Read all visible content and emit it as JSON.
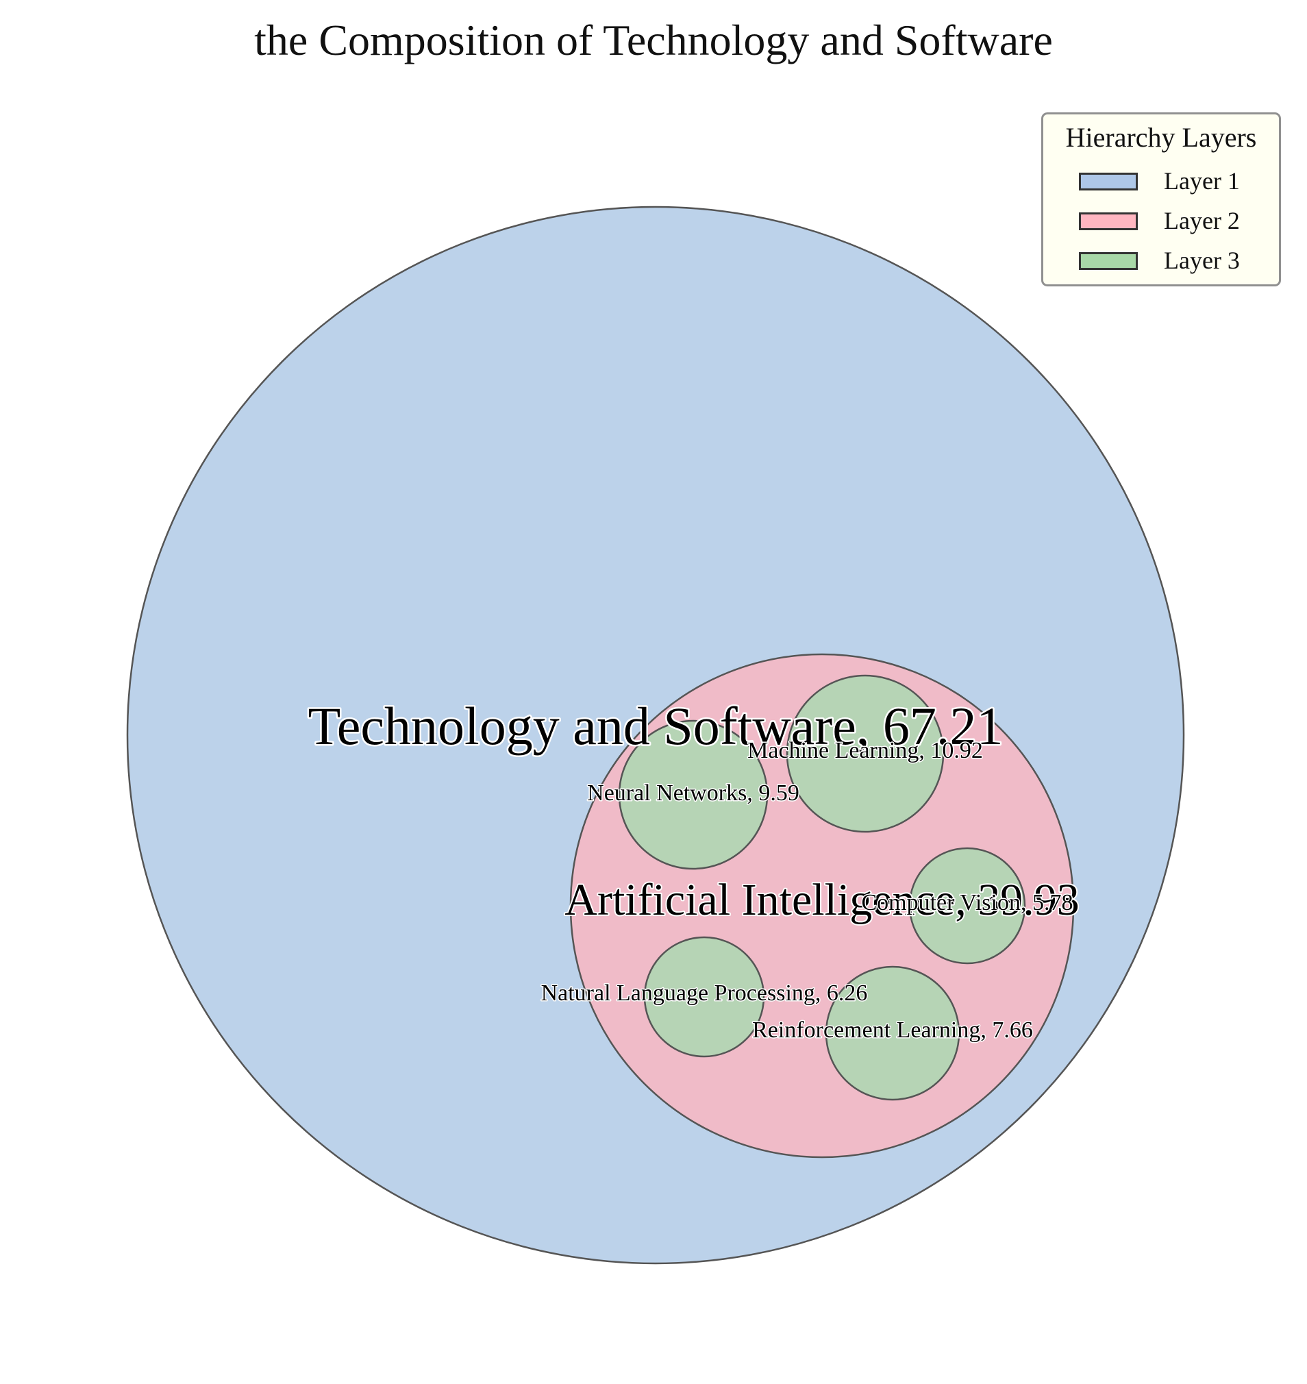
{
  "chart_data": {
    "type": "circle_packing",
    "title": "the Composition of Technology and Software",
    "nodes": [
      {
        "name": "Technology and Software",
        "value": 67.21,
        "label": "Technology and Software, 67.21",
        "layer": 1,
        "parent": null
      },
      {
        "name": "Artificial Intelligence",
        "value": 39.93,
        "label": "Artificial Intelligence, 39.93",
        "layer": 2,
        "parent": "Technology and Software"
      },
      {
        "name": "Machine Learning",
        "value": 10.92,
        "label": "Machine Learning, 10.92",
        "layer": 3,
        "parent": "Artificial Intelligence"
      },
      {
        "name": "Neural Networks",
        "value": 9.59,
        "label": "Neural Networks, 9.59",
        "layer": 3,
        "parent": "Artificial Intelligence"
      },
      {
        "name": "Computer Vision",
        "value": 5.78,
        "label": "Computer Vision, 5.78",
        "layer": 3,
        "parent": "Artificial Intelligence"
      },
      {
        "name": "Natural Language Processing",
        "value": 6.26,
        "label": "Natural Language Processing, 6.26",
        "layer": 3,
        "parent": "Artificial Intelligence"
      },
      {
        "name": "Reinforcement Learning",
        "value": 7.66,
        "label": "Reinforcement Learning, 7.66",
        "layer": 3,
        "parent": "Artificial Intelligence"
      }
    ],
    "legend": {
      "title": "Hierarchy Layers",
      "placement": "top-right",
      "items": [
        {
          "label": "Layer 1",
          "color": "#aec7e8"
        },
        {
          "label": "Layer 2",
          "color": "#ffb6c1"
        },
        {
          "label": "Layer 3",
          "color": "#a8d8a8"
        }
      ]
    },
    "layer_colors": {
      "1": "#bcd2ea",
      "2": "#f0bbc8",
      "3": "#b6d4b5"
    },
    "edge_color": "#555555"
  }
}
